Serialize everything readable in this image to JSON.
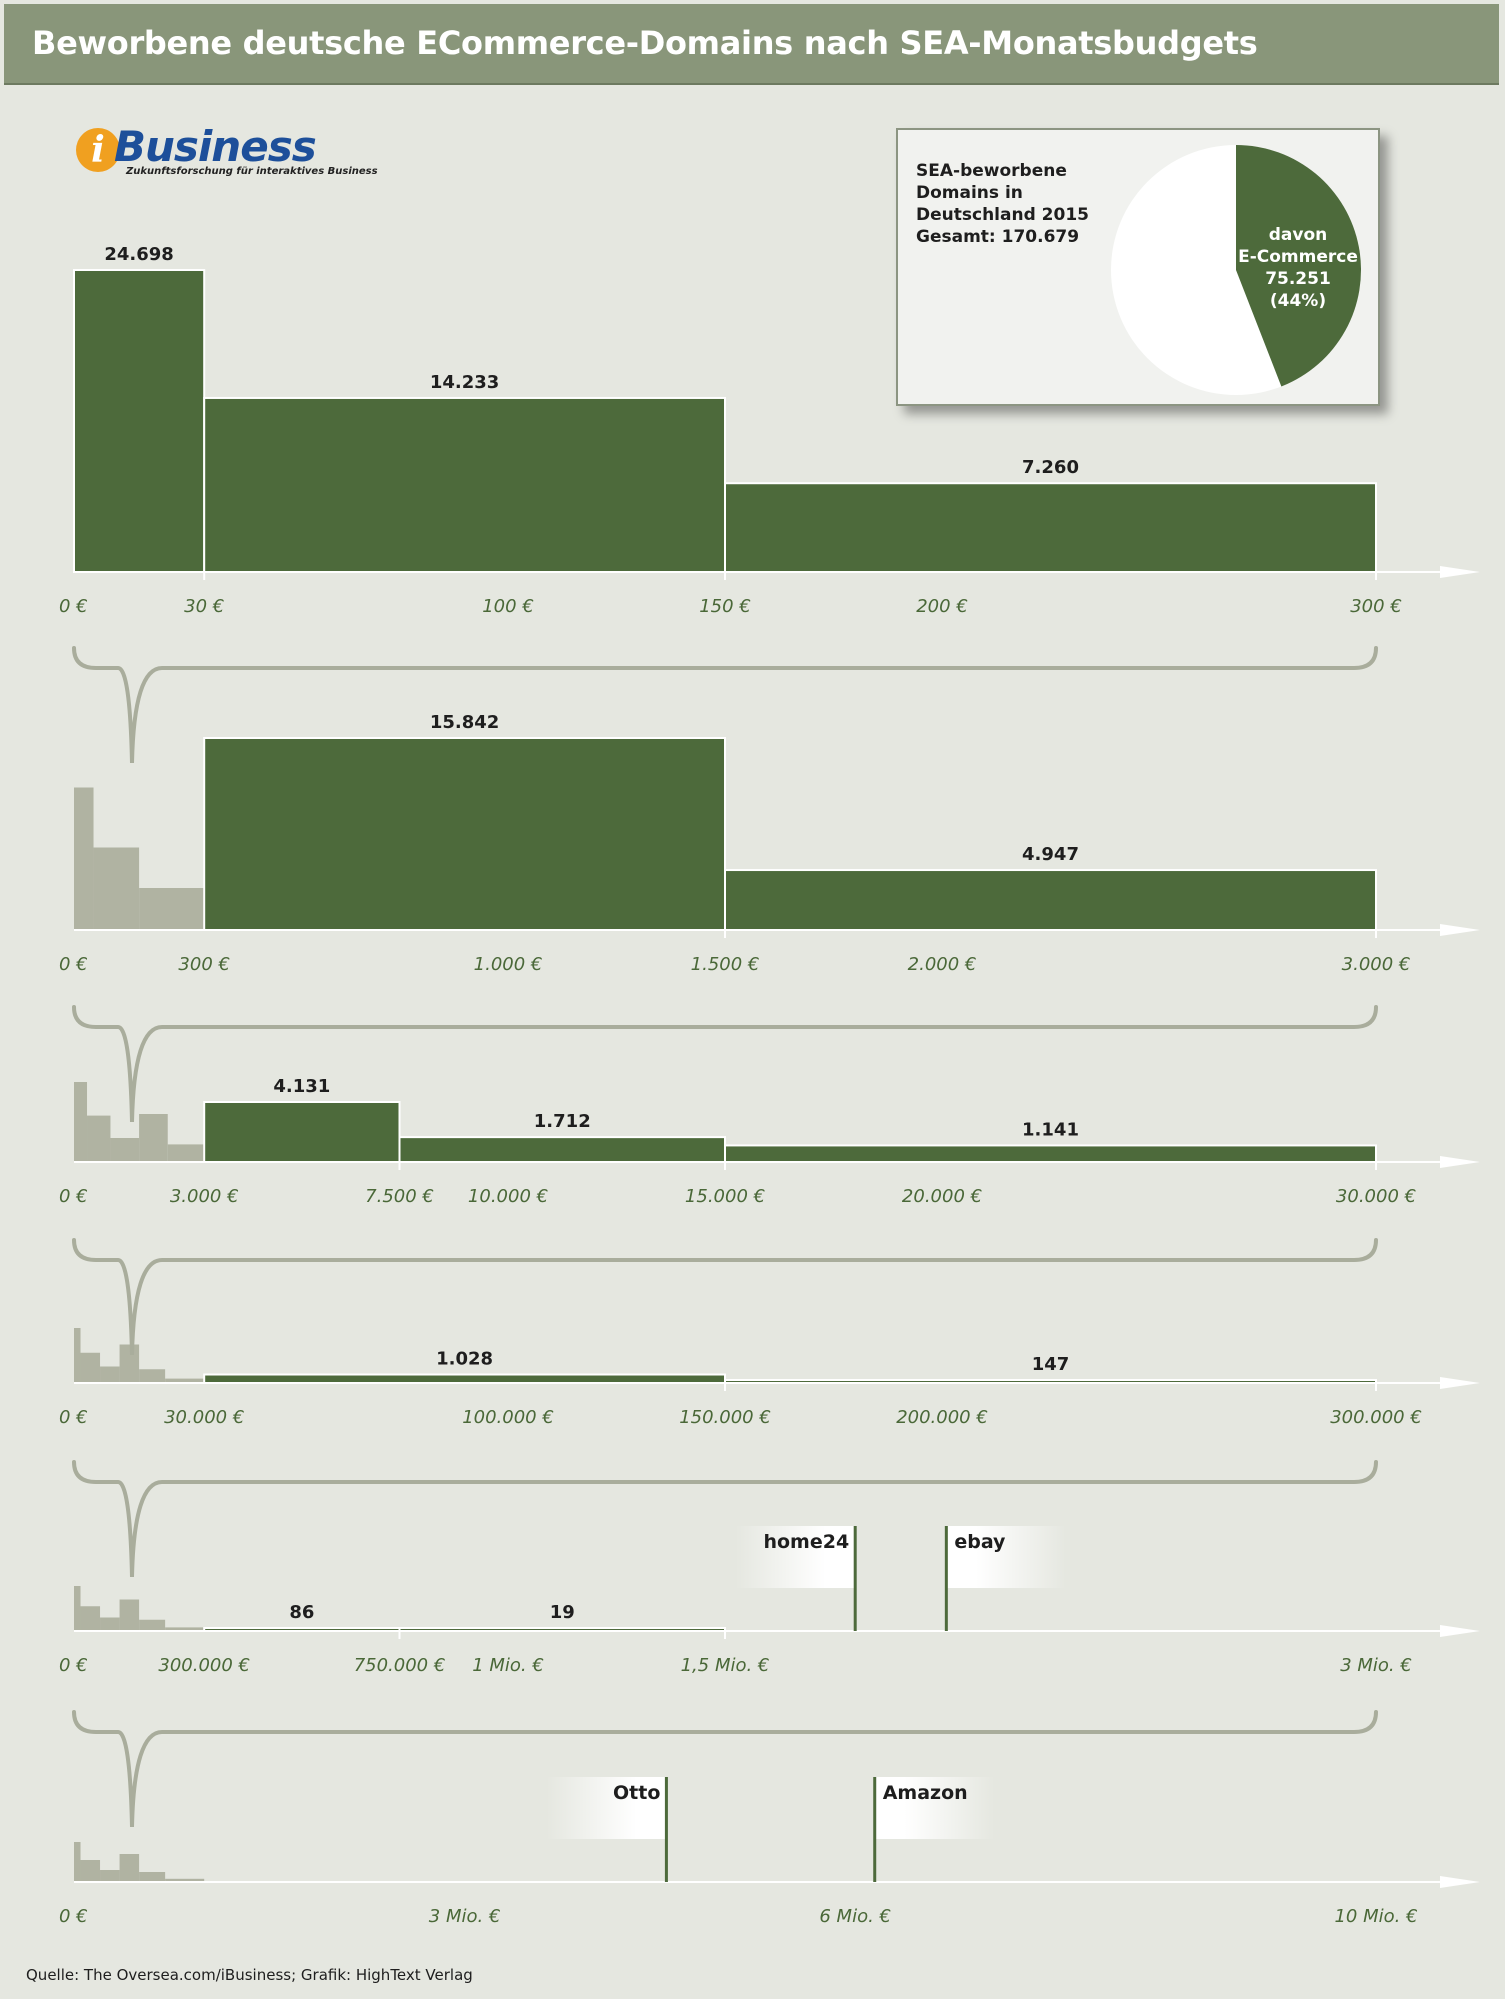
{
  "header": {
    "title": "Beworbene deutsche ECommerce-Domains nach SEA-Monatsbudgets"
  },
  "logo": {
    "name": "iBusiness",
    "tagline": "Zukunftsforschung für interaktives Business"
  },
  "pie": {
    "text_lines": [
      "SEA-beworbene",
      "Domains in",
      "Deutschland 2015",
      "Gesamt: 170.679"
    ],
    "total": 170679,
    "ecommerce": 75251,
    "share_percent": 44,
    "label_lines": [
      "davon",
      "E-Commerce",
      "75.251",
      "(44%)"
    ]
  },
  "colors": {
    "bar": "#4d6a3b",
    "ghost": "#b0b3a2",
    "axis_text": "#4a6838",
    "title_bar": "#89967a",
    "brace": "#a9ad9c"
  },
  "chart_data": [
    {
      "type": "bar",
      "xlim": [
        0,
        300
      ],
      "bins": [
        [
          0,
          30,
          24698
        ],
        [
          30,
          150,
          14233
        ],
        [
          150,
          300,
          7260
        ]
      ],
      "value_labels": [
        "24.698",
        "14.233",
        "7.260"
      ],
      "ticks": [
        [
          0,
          "0 €"
        ],
        [
          30,
          "30 €"
        ],
        [
          100,
          "100 €"
        ],
        [
          150,
          "150 €"
        ],
        [
          200,
          "200 €"
        ],
        [
          300,
          "300 €"
        ]
      ]
    },
    {
      "type": "bar",
      "xlim": [
        0,
        3000
      ],
      "bins": [
        [
          300,
          1500,
          15842
        ],
        [
          1500,
          3000,
          4947
        ]
      ],
      "value_labels": [
        "15.842",
        "4.947"
      ],
      "ticks": [
        [
          0,
          "0 €"
        ],
        [
          300,
          "300 €"
        ],
        [
          1000,
          "1.000 €"
        ],
        [
          1500,
          "1.500 €"
        ],
        [
          2000,
          "2.000 €"
        ],
        [
          3000,
          "3.000 €"
        ]
      ]
    },
    {
      "type": "bar",
      "xlim": [
        0,
        30000
      ],
      "bins": [
        [
          3000,
          7500,
          4131
        ],
        [
          7500,
          15000,
          1712
        ],
        [
          15000,
          30000,
          1141
        ]
      ],
      "value_labels": [
        "4.131",
        "1.712",
        "1.141"
      ],
      "ticks": [
        [
          0,
          "0 €"
        ],
        [
          3000,
          "3.000 €"
        ],
        [
          7500,
          "7.500 €"
        ],
        [
          10000,
          "10.000 €"
        ],
        [
          15000,
          "15.000 €"
        ],
        [
          20000,
          "20.000 €"
        ],
        [
          30000,
          "30.000 €"
        ]
      ]
    },
    {
      "type": "bar",
      "xlim": [
        0,
        300000
      ],
      "bins": [
        [
          30000,
          150000,
          1028
        ],
        [
          150000,
          300000,
          147
        ]
      ],
      "value_labels": [
        "1.028",
        "147"
      ],
      "ticks": [
        [
          0,
          "0 €"
        ],
        [
          30000,
          "30.000 €"
        ],
        [
          100000,
          "100.000 €"
        ],
        [
          150000,
          "150.000 €"
        ],
        [
          200000,
          "200.000 €"
        ],
        [
          300000,
          "300.000 €"
        ]
      ]
    },
    {
      "type": "bar",
      "xlim": [
        0,
        3000000
      ],
      "bins": [
        [
          300000,
          750000,
          86
        ],
        [
          750000,
          1500000,
          19
        ]
      ],
      "value_labels": [
        "86",
        "19"
      ],
      "markers": [
        {
          "name": "home24",
          "side": "left",
          "value": 1800000
        },
        {
          "name": "ebay",
          "side": "right",
          "value": 2010000
        }
      ],
      "ticks": [
        [
          0,
          "0 €"
        ],
        [
          300000,
          "300.000 €"
        ],
        [
          750000,
          "750.000 €"
        ],
        [
          1000000,
          "1 Mio. €"
        ],
        [
          1500000,
          "1,5 Mio. €"
        ],
        [
          3000000,
          "3 Mio. €"
        ]
      ]
    },
    {
      "type": "bar",
      "xlim": [
        0,
        10000000
      ],
      "bins": [],
      "value_labels": [],
      "markers": [
        {
          "name": "Otto",
          "side": "left",
          "value": 4550000
        },
        {
          "name": "Amazon",
          "side": "right",
          "value": 6150000
        }
      ],
      "ticks": [
        [
          0,
          "0 €"
        ],
        [
          3000000,
          "3 Mio. €"
        ],
        [
          6000000,
          "6 Mio. €"
        ],
        [
          10000000,
          "10 Mio. €"
        ]
      ]
    }
  ],
  "source": "Quelle: The Oversea.com/iBusiness; Grafik: HighText Verlag"
}
